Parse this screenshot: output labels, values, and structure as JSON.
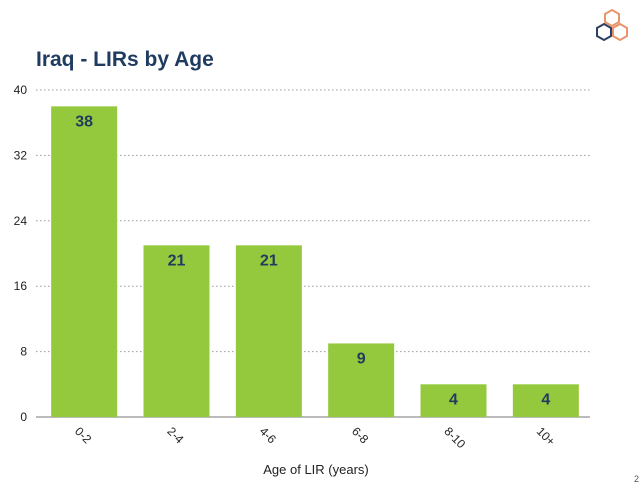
{
  "header": {
    "title": "Iraq - LIRs by Age"
  },
  "logo": {
    "icon": "hexagon-logo-icon",
    "colors": [
      "#e9956b",
      "#a9c0d6",
      "#2d3e62"
    ]
  },
  "chart_data": {
    "type": "bar",
    "title": "Iraq - LIRs by Age",
    "xlabel": "Age of LIR (years)",
    "ylabel": "",
    "categories": [
      "0-2",
      "2-4",
      "4-6",
      "6-8",
      "8-10",
      "10+"
    ],
    "values": [
      38,
      21,
      21,
      9,
      4,
      4
    ],
    "ylim": [
      0,
      40
    ],
    "yticks": [
      "0",
      "8",
      "16",
      "24",
      "32",
      "40"
    ],
    "grid": true,
    "gridStyle": "dotted",
    "legend": "none",
    "bar_color": "#95c93d",
    "label_color": "#1f3b5f"
  },
  "footer": {
    "slide_number": "2"
  }
}
